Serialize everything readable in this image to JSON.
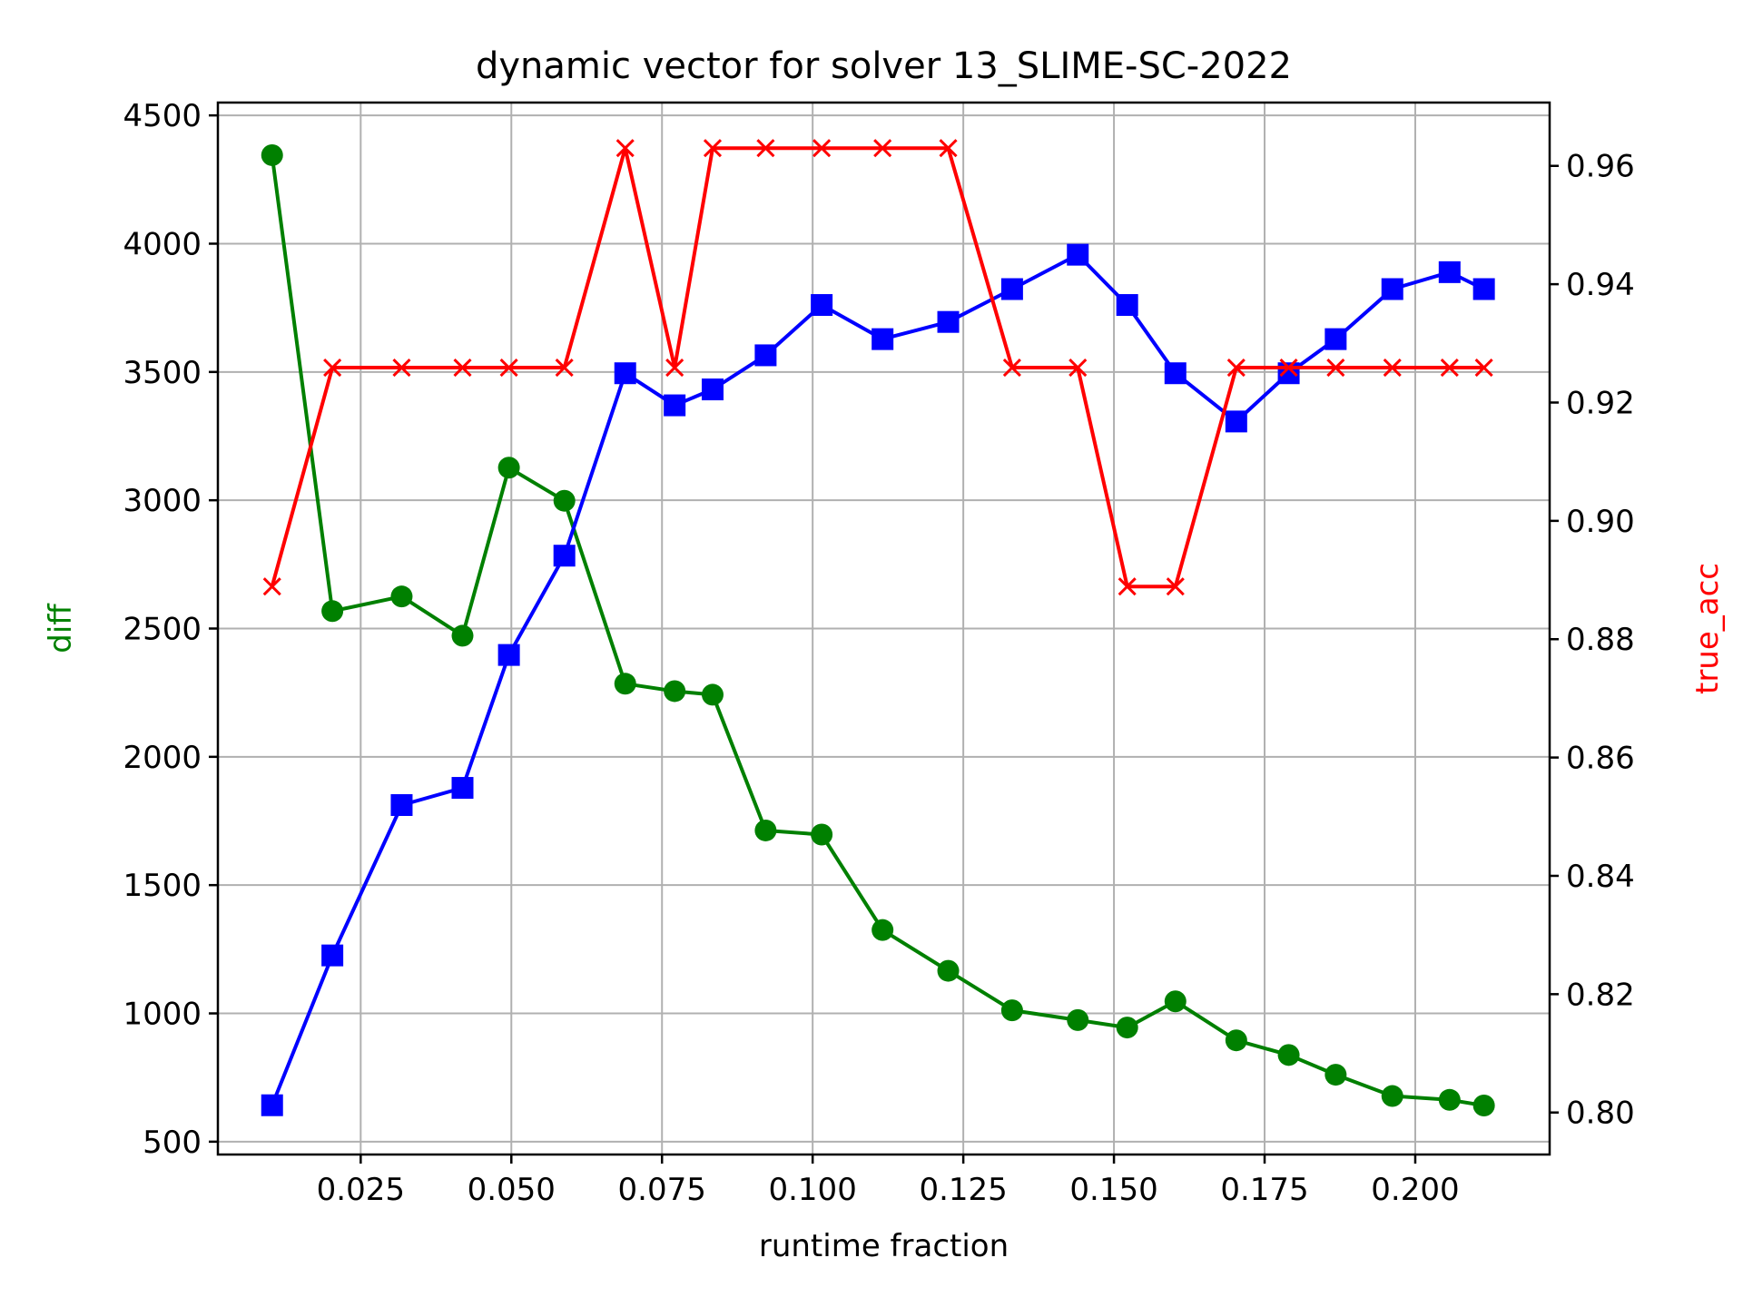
{
  "chart_data": {
    "type": "line",
    "title": "dynamic vector for solver 13_SLIME-SC-2022",
    "xlabel": "runtime fraction",
    "ylabel": "diff",
    "ylabel_color": "#008000",
    "y2label": "true_acc",
    "y2label_color": "#ff0000",
    "grid": true,
    "xlim": [
      0.0013,
      0.2223
    ],
    "ylim": [
      450,
      4550
    ],
    "y2lim": [
      0.7929,
      0.9707
    ],
    "x_ticks": [
      "0.025",
      "0.050",
      "0.075",
      "0.100",
      "0.125",
      "0.150",
      "0.175",
      "0.200"
    ],
    "y_ticks": [
      "500",
      "1000",
      "1500",
      "2000",
      "2500",
      "3000",
      "3500",
      "4000",
      "4500"
    ],
    "y2_ticks": [
      "0.80",
      "0.82",
      "0.84",
      "0.86",
      "0.88",
      "0.90",
      "0.92",
      "0.94",
      "0.96"
    ],
    "x": [
      0.0103,
      0.0203,
      0.0318,
      0.0419,
      0.0496,
      0.0588,
      0.0689,
      0.0771,
      0.0834,
      0.0922,
      0.1015,
      0.1116,
      0.1225,
      0.1331,
      0.144,
      0.1522,
      0.1602,
      0.1703,
      0.179,
      0.1868,
      0.1962,
      0.2057,
      0.2114
    ],
    "series": [
      {
        "axis": "left",
        "color": "#008000",
        "marker": "circle",
        "values": [
          4345,
          2568,
          2625,
          2472,
          3127,
          2998,
          2285,
          2256,
          2242,
          1713,
          1697,
          1325,
          1166,
          1012,
          974,
          945,
          1047,
          895,
          838,
          761,
          678,
          663,
          641
        ]
      },
      {
        "axis": "left",
        "color": "#0000ff",
        "marker": "square",
        "values": [
          642,
          1226,
          1812,
          1879,
          2397,
          2784,
          3495,
          3370,
          3432,
          3565,
          3761,
          3628,
          3695,
          3823,
          3957,
          3761,
          3495,
          3307,
          3495,
          3628,
          3823,
          3889,
          3823
        ]
      },
      {
        "axis": "right",
        "color": "#ff0000",
        "marker": "x",
        "values": [
          0.8889,
          0.9259,
          0.9259,
          0.9259,
          0.9259,
          0.9259,
          0.963,
          0.9259,
          0.963,
          0.963,
          0.963,
          0.963,
          0.963,
          0.9259,
          0.9259,
          0.8889,
          0.8889,
          0.9259,
          0.9259,
          0.9259,
          0.9259,
          0.9259,
          0.9259
        ]
      }
    ]
  }
}
